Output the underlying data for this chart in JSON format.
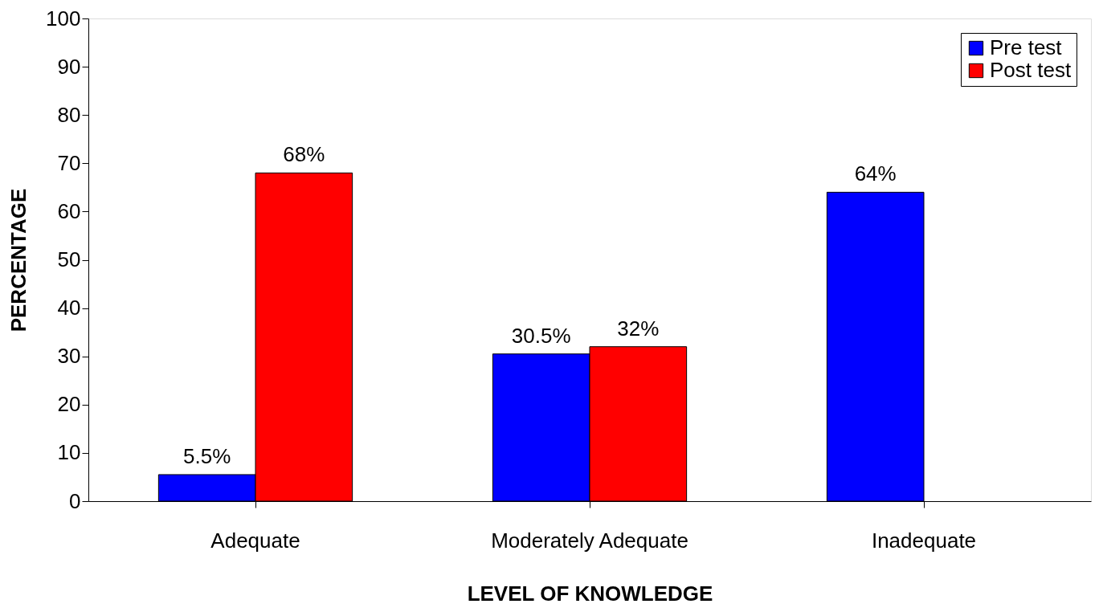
{
  "chart_data": {
    "type": "bar",
    "xlabel": "LEVEL OF KNOWLEDGE",
    "ylabel": "PERCENTAGE",
    "categories": [
      "Adequate",
      "Moderately Adequate",
      "Inadequate"
    ],
    "series": [
      {
        "name": "Pre test",
        "color": "#0000ff",
        "values": [
          5.5,
          30.5,
          64
        ],
        "value_labels": [
          "5.5%",
          "30.5%",
          "64%"
        ]
      },
      {
        "name": "Post test",
        "color": "#ff0000",
        "values": [
          68,
          32,
          null
        ],
        "value_labels": [
          "68%",
          "32%",
          null
        ]
      }
    ],
    "ylim": [
      0,
      100
    ],
    "yticks": [
      0,
      10,
      20,
      30,
      40,
      50,
      60,
      70,
      80,
      90,
      100
    ],
    "grid": false,
    "legend": "top right"
  }
}
